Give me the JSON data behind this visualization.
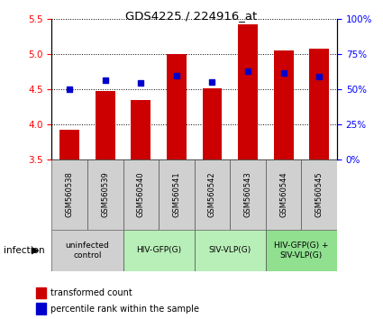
{
  "title": "GDS4225 / 224916_at",
  "samples": [
    "GSM560538",
    "GSM560539",
    "GSM560540",
    "GSM560541",
    "GSM560542",
    "GSM560543",
    "GSM560544",
    "GSM560545"
  ],
  "red_values": [
    3.93,
    4.48,
    4.35,
    5.0,
    4.51,
    5.43,
    5.05,
    5.08
  ],
  "blue_values": [
    4.5,
    4.63,
    4.59,
    4.69,
    4.61,
    4.76,
    4.73,
    4.68
  ],
  "ylim_left": [
    3.5,
    5.5
  ],
  "ylim_right": [
    0,
    100
  ],
  "yticks_left": [
    3.5,
    4.0,
    4.5,
    5.0,
    5.5
  ],
  "yticks_right": [
    0,
    25,
    50,
    75,
    100
  ],
  "ytick_labels_right": [
    "0%",
    "25%",
    "50%",
    "75%",
    "100%"
  ],
  "groups": [
    {
      "label": "uninfected\ncontrol",
      "samples": [
        0,
        1
      ],
      "color": "#d0d0d0"
    },
    {
      "label": "HIV-GFP(G)",
      "samples": [
        2,
        3
      ],
      "color": "#b8eeb8"
    },
    {
      "label": "SIV-VLP(G)",
      "samples": [
        4,
        5
      ],
      "color": "#b8eeb8"
    },
    {
      "label": "HIV-GFP(G) +\nSIV-VLP(G)",
      "samples": [
        6,
        7
      ],
      "color": "#90e090"
    }
  ],
  "bar_color": "#cc0000",
  "dot_color": "#0000cc",
  "bar_bottom": 3.5,
  "bar_width": 0.55,
  "infection_label": "infection",
  "legend_red": "transformed count",
  "legend_blue": "percentile rank within the sample",
  "sample_box_color": "#d0d0d0"
}
